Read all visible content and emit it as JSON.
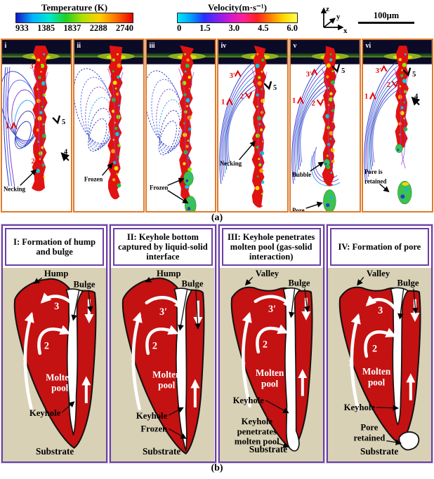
{
  "colorbars": {
    "temperature": {
      "title": "Temperature (K)",
      "ticks": [
        "933",
        "1385",
        "1837",
        "2288",
        "2740"
      ]
    },
    "velocity": {
      "title": "Velocity(m·s⁻¹)",
      "ticks": [
        "0",
        "1.5",
        "3.0",
        "4.5",
        "6.0"
      ]
    }
  },
  "axes_labels": {
    "z": "z",
    "y": "y",
    "x": "x"
  },
  "scale_bar": "100μm",
  "section_a": {
    "caption": "(a)",
    "panels": [
      {
        "id": "i",
        "annotations": [
          {
            "text": "3",
            "color": "red"
          },
          {
            "text": "1",
            "color": "red"
          },
          {
            "text": "5",
            "color": "black"
          },
          {
            "text": "4",
            "color": "black"
          },
          {
            "text": "2",
            "color": "red"
          },
          {
            "text": "Necking",
            "color": "black"
          }
        ]
      },
      {
        "id": "ii",
        "annotations": [
          {
            "text": "Frozen",
            "color": "black"
          }
        ]
      },
      {
        "id": "iii",
        "annotations": [
          {
            "text": "Frozen",
            "color": "black"
          }
        ]
      },
      {
        "id": "iv",
        "annotations": [
          {
            "text": "3′",
            "color": "red"
          },
          {
            "text": "2",
            "color": "red"
          },
          {
            "text": "1",
            "color": "red"
          },
          {
            "text": "5",
            "color": "black"
          },
          {
            "text": "Necking",
            "color": "black"
          }
        ]
      },
      {
        "id": "v",
        "annotations": [
          {
            "text": "3′",
            "color": "red"
          },
          {
            "text": "5",
            "color": "black"
          },
          {
            "text": "1",
            "color": "red"
          },
          {
            "text": "2",
            "color": "red"
          },
          {
            "text": "Bubble",
            "color": "black"
          },
          {
            "text": "Pore",
            "color": "black"
          }
        ]
      },
      {
        "id": "vi",
        "annotations": [
          {
            "text": "3′",
            "color": "red"
          },
          {
            "text": "5",
            "color": "black"
          },
          {
            "text": "2",
            "color": "red"
          },
          {
            "text": "4",
            "color": "black"
          },
          {
            "text": "1",
            "color": "red"
          },
          {
            "text": "Pore is\nretained",
            "color": "black"
          }
        ]
      }
    ]
  },
  "section_b": {
    "caption": "(b)",
    "panels": [
      {
        "id": "I",
        "title": "I: Formation of hump and bulge",
        "top_feature": "Hump",
        "bulge": "Bulge",
        "flow": [
          "1",
          "2",
          "3"
        ],
        "molten_pool": "Molten\npool",
        "keyhole": "Keyhole",
        "substrate": "Substrate",
        "extras": []
      },
      {
        "id": "II",
        "title": "II: Keyhole bottom captured by liquid-solid interface",
        "top_feature": "Hump",
        "bulge": "Bulge",
        "flow": [
          "1",
          "2",
          "3′"
        ],
        "molten_pool": "Molten\npool",
        "keyhole": "Keyhole",
        "substrate": "Substrate",
        "extras": [
          "Frozen"
        ]
      },
      {
        "id": "III",
        "title": "III: Keyhole penetrates molten pool (gas-solid interaction)",
        "top_feature": "Valley",
        "bulge": "Bulge",
        "flow": [
          "1",
          "2",
          "3′"
        ],
        "molten_pool": "Molten\npool",
        "keyhole": "Keyhole",
        "substrate": "Substrate",
        "extras": [
          "Keyhole\npenetrates\nmolten pool"
        ]
      },
      {
        "id": "IV",
        "title": "IV: Formation of pore",
        "top_feature": "Valley",
        "bulge": "Bulge",
        "flow": [
          "1",
          "2",
          "3"
        ],
        "molten_pool": "Molten\npool",
        "keyhole": "Keyhole",
        "substrate": "Substrate",
        "extras": [
          "Pore\nretained"
        ]
      }
    ]
  },
  "colors": {
    "panel_a_border": "#E07B2A",
    "panel_b_border": "#6C3FA6",
    "molten_red": "#C41111",
    "substrate_tan": "#D8D1B6"
  }
}
